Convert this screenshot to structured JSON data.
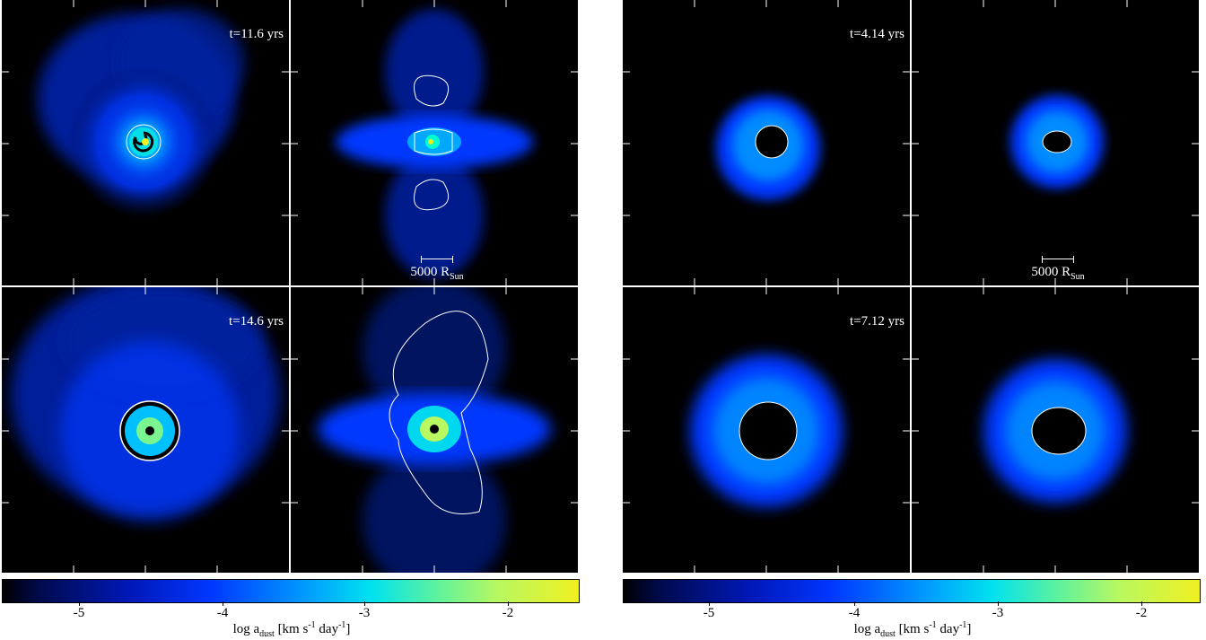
{
  "figures": [
    {
      "id": "left",
      "rows": [
        {
          "time": "t=11.6 yrs",
          "scale": "5000 R",
          "scale_sub": "Sun"
        },
        {
          "time": "t=14.6 yrs",
          "scale": "",
          "scale_sub": ""
        }
      ],
      "colorbar": {
        "ticks": [
          "-5",
          "-4",
          "-3",
          "-2"
        ],
        "label_prefix": "log a",
        "label_sub": "dust",
        "label_units_a": " [km s",
        "label_sup1": "-1",
        "label_units_b": " day",
        "label_sup2": "-1",
        "label_units_c": "]"
      }
    },
    {
      "id": "right",
      "rows": [
        {
          "time": "t=4.14 yrs",
          "scale": "5000 R",
          "scale_sub": "Sun"
        },
        {
          "time": "t=7.12 yrs",
          "scale": "",
          "scale_sub": ""
        }
      ],
      "colorbar": {
        "ticks": [
          "-5",
          "-4",
          "-3",
          "-2"
        ],
        "label_prefix": "log a",
        "label_sub": "dust",
        "label_units_a": " [km s",
        "label_sup1": "-1",
        "label_units_b": " day",
        "label_sup2": "-1",
        "label_units_c": "]"
      }
    }
  ],
  "colorbar_range": [
    -5.75,
    -1.65
  ],
  "colors": {
    "background": "#000000",
    "frame": "#ffffff"
  }
}
